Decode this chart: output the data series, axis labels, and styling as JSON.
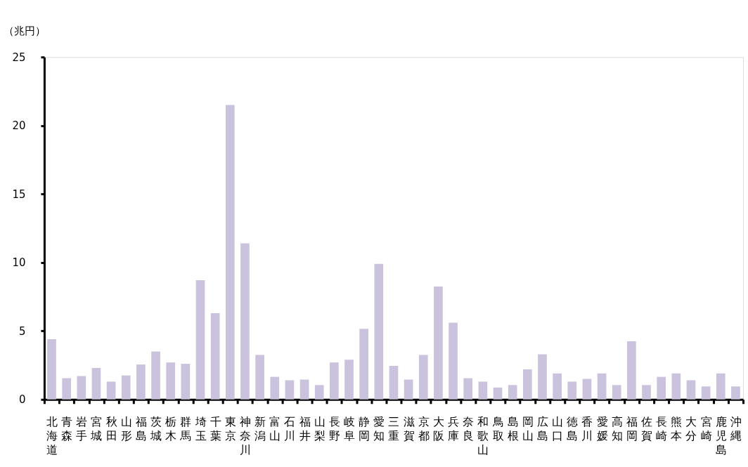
{
  "chart_data": {
    "type": "bar",
    "ylabel": "（兆円）",
    "categories": [
      "北海道",
      "青森",
      "岩手",
      "宮城",
      "秋田",
      "山形",
      "福島",
      "茨城",
      "栃木",
      "群馬",
      "埼玉",
      "千葉",
      "東京",
      "神奈川",
      "新潟",
      "富山",
      "石川",
      "福井",
      "山梨",
      "長野",
      "岐阜",
      "静岡",
      "愛知",
      "三重",
      "滋賀",
      "京都",
      "大阪",
      "兵庫",
      "奈良",
      "和歌山",
      "鳥取",
      "島根",
      "岡山",
      "広島",
      "山口",
      "徳島",
      "香川",
      "愛媛",
      "高知",
      "福岡",
      "佐賀",
      "長崎",
      "熊本",
      "大分",
      "宮崎",
      "鹿児島",
      "沖縄"
    ],
    "values": [
      4.4,
      1.55,
      1.7,
      2.3,
      1.3,
      1.75,
      2.55,
      3.5,
      2.7,
      2.6,
      8.7,
      6.3,
      21.5,
      11.4,
      3.25,
      1.65,
      1.4,
      1.45,
      1.05,
      2.7,
      2.9,
      5.15,
      9.9,
      2.45,
      1.45,
      3.25,
      8.25,
      5.6,
      1.55,
      1.3,
      0.87,
      1.05,
      2.2,
      3.3,
      1.9,
      1.3,
      1.5,
      1.9,
      1.05,
      4.25,
      1.05,
      1.65,
      1.9,
      1.4,
      0.95,
      1.9,
      0.95
    ],
    "color": "#cbc3dd",
    "ylim": [
      0,
      25
    ],
    "yticks": [
      0,
      5,
      10,
      15,
      20,
      25
    ],
    "grid": false
  }
}
